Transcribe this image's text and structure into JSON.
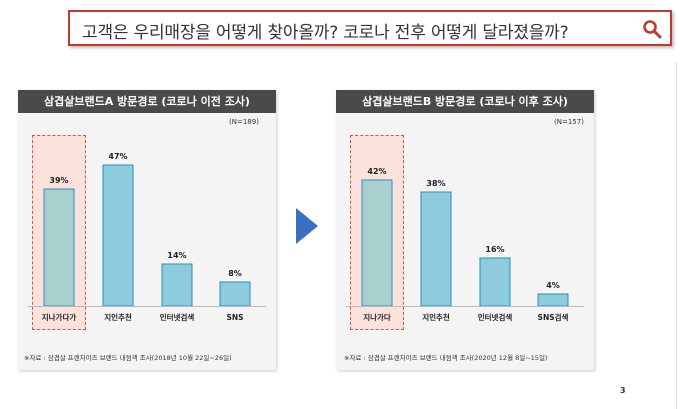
{
  "header": {
    "question": "고객은 우리매장을 어떻게 찾아올까? 코로나 전후 어떻게 달라졌을까?",
    "search_icon": "search-icon",
    "accent_color": "#c0392b"
  },
  "chart_data": [
    {
      "type": "bar",
      "title": "삼겹살브랜드A 방문경로 (코로나 이전 조사)",
      "n_label": "(N=189)",
      "categories": [
        "지나가다가",
        "지인추천",
        "인터넷검색",
        "SNS"
      ],
      "values": [
        39,
        47,
        14,
        8
      ],
      "value_labels": [
        "39%",
        "47%",
        "14%",
        "8%"
      ],
      "highlighted_category": "지나가다가",
      "ylim": [
        0,
        50
      ],
      "footnote": "※자료 : 삼겹살 프랜차이즈 브랜드 내점객 조사(2018년 10월 22일~26일)",
      "colors": {
        "highlight_bar": "#a9cfcf",
        "bar": "#8ecbde",
        "header": "#4a4a4a"
      }
    },
    {
      "type": "bar",
      "title": "삼겹살브랜드B 방문경로 (코로나 이후 조사)",
      "n_label": "(N=157)",
      "categories": [
        "지나가다",
        "지인추천",
        "인터넷검색",
        "SNS검색"
      ],
      "values": [
        42,
        38,
        16,
        4
      ],
      "value_labels": [
        "42%",
        "38%",
        "16%",
        "4%"
      ],
      "highlighted_category": "지나가다",
      "ylim": [
        0,
        50
      ],
      "footnote": "※자료 : 삼겹살 프랜차이즈 브랜드 내점객 조사(2020년 12월 8일~15일)",
      "colors": {
        "highlight_bar": "#a9cfcf",
        "bar": "#8ecbde",
        "header": "#4a4a4a"
      }
    }
  ],
  "arrow_icon": "arrow-right-icon",
  "arrow_color": "#3a6fc4",
  "page_number": "3"
}
